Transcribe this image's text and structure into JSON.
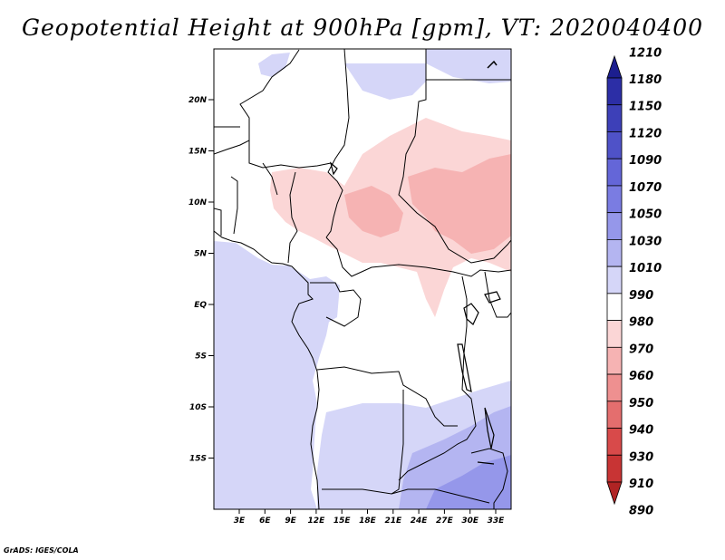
{
  "title": "Geopotential Height at 900hPa [gpm], VT: 2020040400",
  "footer": "GrADS: IGES/COLA",
  "map": {
    "lat_labels": [
      "20N",
      "15N",
      "10N",
      "5N",
      "EQ",
      "5S",
      "10S",
      "15S"
    ],
    "lon_labels": [
      "3E",
      "6E",
      "9E",
      "12E",
      "15E",
      "18E",
      "21E",
      "24E",
      "27E",
      "30E",
      "33E"
    ]
  },
  "colorbar": {
    "levels": [
      "1210",
      "1180",
      "1150",
      "1120",
      "1090",
      "1070",
      "1050",
      "1030",
      "1010",
      "990",
      "980",
      "970",
      "960",
      "950",
      "940",
      "930",
      "910",
      "890"
    ],
    "colors": [
      "#1c1e8f",
      "#2c2ea6",
      "#3d40b8",
      "#4f52c8",
      "#6466d8",
      "#7a7ce2",
      "#9597ea",
      "#b4b5f1",
      "#d5d6f8",
      "#ffffff",
      "#fbd6d6",
      "#f6b3b3",
      "#ee9090",
      "#e46e6e",
      "#d84a4a",
      "#c83434",
      "#b02424"
    ]
  }
}
